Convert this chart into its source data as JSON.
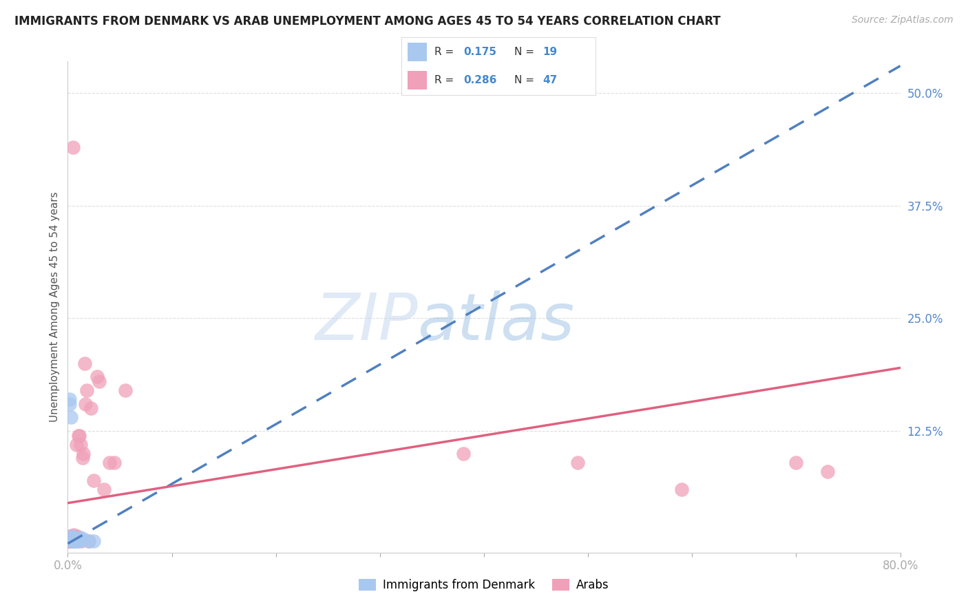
{
  "title": "IMMIGRANTS FROM DENMARK VS ARAB UNEMPLOYMENT AMONG AGES 45 TO 54 YEARS CORRELATION CHART",
  "source": "Source: ZipAtlas.com",
  "ylabel": "Unemployment Among Ages 45 to 54 years",
  "xlim": [
    0,
    0.8
  ],
  "ylim": [
    -0.01,
    0.535
  ],
  "yticks_right": [
    0.0,
    0.125,
    0.25,
    0.375,
    0.5
  ],
  "ytick_right_labels": [
    "",
    "12.5%",
    "25.0%",
    "37.5%",
    "50.0%"
  ],
  "denmark_color": "#a8c8f0",
  "arab_color": "#f0a0b8",
  "denmark_trend_color": "#5080c0",
  "arab_trend_color": "#e06080",
  "watermark_zip": "ZIP",
  "watermark_atlas": "atlas",
  "denmark_x": [
    0.001,
    0.002,
    0.002,
    0.003,
    0.003,
    0.004,
    0.004,
    0.005,
    0.005,
    0.006,
    0.006,
    0.007,
    0.008,
    0.009,
    0.01,
    0.012,
    0.015,
    0.02,
    0.025
  ],
  "denmark_y": [
    0.005,
    0.155,
    0.16,
    0.14,
    0.005,
    0.003,
    0.008,
    0.005,
    0.003,
    0.005,
    0.003,
    0.007,
    0.005,
    0.003,
    0.003,
    0.007,
    0.005,
    0.003,
    0.003
  ],
  "arab_x": [
    0.001,
    0.001,
    0.002,
    0.002,
    0.002,
    0.003,
    0.003,
    0.003,
    0.003,
    0.004,
    0.004,
    0.004,
    0.005,
    0.005,
    0.005,
    0.006,
    0.006,
    0.007,
    0.007,
    0.008,
    0.008,
    0.009,
    0.009,
    0.01,
    0.01,
    0.011,
    0.012,
    0.013,
    0.014,
    0.015,
    0.016,
    0.017,
    0.018,
    0.02,
    0.022,
    0.025,
    0.028,
    0.03,
    0.035,
    0.04,
    0.045,
    0.055,
    0.38,
    0.49,
    0.59,
    0.7,
    0.73
  ],
  "arab_y": [
    0.003,
    0.005,
    0.003,
    0.005,
    0.008,
    0.003,
    0.005,
    0.008,
    0.003,
    0.003,
    0.005,
    0.003,
    0.44,
    0.005,
    0.003,
    0.005,
    0.01,
    0.005,
    0.003,
    0.005,
    0.11,
    0.005,
    0.008,
    0.12,
    0.005,
    0.12,
    0.11,
    0.003,
    0.095,
    0.1,
    0.2,
    0.155,
    0.17,
    0.003,
    0.15,
    0.07,
    0.185,
    0.18,
    0.06,
    0.09,
    0.09,
    0.17,
    0.1,
    0.09,
    0.06,
    0.09,
    0.08
  ],
  "denmark_trend_x": [
    0.0,
    0.8
  ],
  "denmark_trend_y": [
    0.0,
    0.53
  ],
  "arab_trend_x": [
    0.0,
    0.8
  ],
  "arab_trend_y": [
    0.045,
    0.195
  ]
}
